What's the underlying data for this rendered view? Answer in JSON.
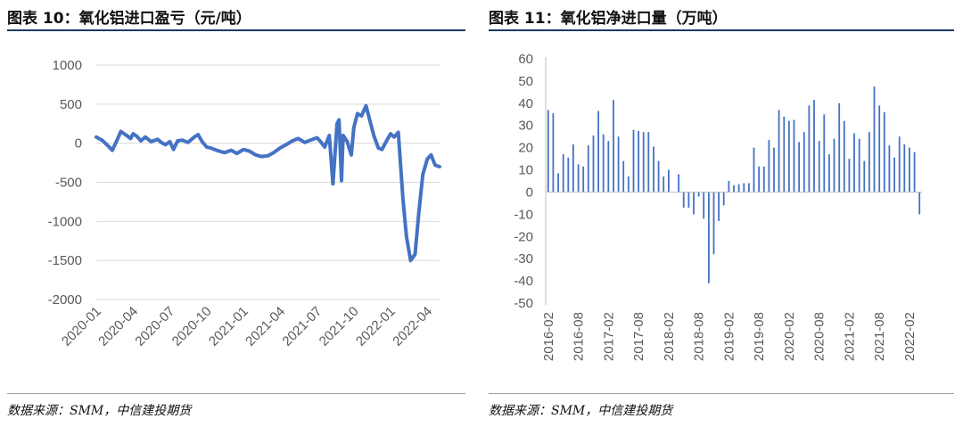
{
  "charts": [
    {
      "title": "图表 10：氧化铝进口盈亏（元/吨）",
      "source": "数据来源：SMM，中信建投期货"
    },
    {
      "title": "图表 11：氧化铝净进口量（万吨）",
      "source": "数据来源：SMM，中信建投期货"
    }
  ],
  "chart_data": [
    {
      "type": "line",
      "title": "图表 10：氧化铝进口盈亏（元/吨）",
      "unit": "元/吨",
      "ylim": [
        -2000,
        1000
      ],
      "yticks": [
        1000,
        500,
        0,
        -500,
        -1000,
        -1500,
        -2000
      ],
      "x_tick_labels": [
        "2020-01",
        "2020-04",
        "2020-07",
        "2020-10",
        "2021-01",
        "2021-04",
        "2021-07",
        "2021-10",
        "2022-01",
        "2022-04"
      ],
      "grid": true,
      "color": "#4472c4",
      "series": [
        {
          "x": [
            "2020-01",
            "2020-01-15",
            "2020-02",
            "2020-02-10",
            "2020-02-20",
            "2020-03",
            "2020-03-15",
            "2020-03-25",
            "2020-04",
            "2020-04-10",
            "2020-04-20",
            "2020-05",
            "2020-05-15",
            "2020-06",
            "2020-06-10",
            "2020-06-20",
            "2020-07",
            "2020-07-10",
            "2020-07-20",
            "2020-08",
            "2020-08-15",
            "2020-09",
            "2020-09-10",
            "2020-09-20",
            "2020-10",
            "2020-10-10",
            "2020-10-20",
            "2020-11",
            "2020-11-15",
            "2020-12",
            "2020-12-15",
            "2021-01",
            "2021-01-15",
            "2021-02",
            "2021-02-15",
            "2021-03",
            "2021-03-15",
            "2021-04",
            "2021-04-15",
            "2021-05",
            "2021-05-15",
            "2021-06",
            "2021-06-15",
            "2021-07",
            "2021-07-10",
            "2021-07-20",
            "2021-08",
            "2021-08-10",
            "2021-08-20",
            "2021-08-25",
            "2021-09",
            "2021-09-05",
            "2021-09-15",
            "2021-09-25",
            "2021-10",
            "2021-10-10",
            "2021-10-20",
            "2021-11",
            "2021-11-10",
            "2021-11-20",
            "2021-12",
            "2021-12-10",
            "2021-12-20",
            "2022-01",
            "2022-01-10",
            "2022-01-20",
            "2022-02",
            "2022-02-10",
            "2022-02-20",
            "2022-03",
            "2022-03-10",
            "2022-03-20",
            "2022-04",
            "2022-04-10",
            "2022-04-20",
            "2022-05"
          ],
          "y": [
            80,
            40,
            -40,
            -90,
            20,
            150,
            100,
            60,
            120,
            90,
            30,
            80,
            20,
            50,
            10,
            -20,
            20,
            -80,
            30,
            40,
            10,
            80,
            110,
            20,
            -50,
            -60,
            -80,
            -100,
            -120,
            -90,
            -130,
            -80,
            -100,
            -150,
            -170,
            -160,
            -120,
            -60,
            -20,
            30,
            60,
            10,
            40,
            70,
            20,
            -50,
            100,
            -520,
            250,
            300,
            -480,
            100,
            20,
            -150,
            200,
            380,
            350,
            480,
            300,
            100,
            -60,
            -80,
            20,
            120,
            80,
            140,
            -700,
            -1200,
            -1500,
            -1420,
            -900,
            -400,
            -200,
            -150,
            -280,
            -300
          ]
        }
      ]
    },
    {
      "type": "bar",
      "title": "图表 11：氧化铝净进口量（万吨）",
      "unit": "万吨",
      "ylim": [
        -50,
        60
      ],
      "yticks": [
        60,
        50,
        40,
        30,
        20,
        10,
        0,
        -10,
        -20,
        -30,
        -40,
        -50
      ],
      "x_tick_labels": [
        "2016-02",
        "2016-08",
        "2017-02",
        "2017-08",
        "2018-02",
        "2018-08",
        "2019-02",
        "2019-08",
        "2020-02",
        "2020-08",
        "2021-02",
        "2021-08",
        "2022-02"
      ],
      "grid": false,
      "color": "#4472c4",
      "start_month": "2016-02",
      "values": [
        37,
        35.5,
        8.5,
        17,
        15.5,
        21.5,
        12.5,
        11.5,
        21,
        25.5,
        36.5,
        26,
        23,
        41.5,
        25,
        14,
        7,
        28,
        27.5,
        27,
        27,
        20.5,
        14,
        7,
        10,
        0,
        8,
        -7,
        -7,
        -10,
        -2,
        -12,
        -41,
        -28,
        -13,
        -6,
        5,
        3,
        3.5,
        4,
        4,
        20,
        11.5,
        11.5,
        23.5,
        20,
        37,
        34,
        32,
        32.5,
        22.5,
        27,
        39,
        41.5,
        23,
        35,
        17,
        24,
        40,
        32,
        15,
        26.5,
        24,
        14,
        27,
        47.5,
        39,
        36,
        21,
        15.5,
        25,
        21.5,
        20,
        18,
        -10
      ]
    }
  ]
}
